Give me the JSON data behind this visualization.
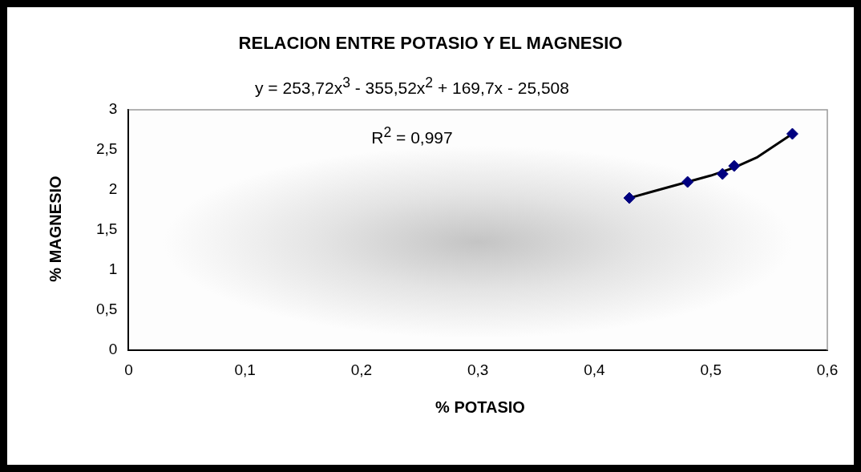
{
  "chart_data": {
    "type": "scatter",
    "title": "RELACION ENTRE POTASIO Y EL MAGNESIO",
    "xlabel": "% POTASIO",
    "ylabel": "% MAGNESIO",
    "annotations": [
      "y = 253,72x$^{3}$ - 355,52x$^{2}$ + 169,7x - 25,508",
      "R$^{2}$ = 0,997"
    ],
    "series": [
      {
        "type": "line",
        "color": "#000000",
        "marker": "none",
        "x": [
          0.43,
          0.45,
          0.48,
          0.5,
          0.52,
          0.54,
          0.57
        ],
        "values": [
          1.9,
          1.98,
          2.1,
          2.18,
          2.28,
          2.41,
          2.7
        ]
      },
      {
        "type": "scatter",
        "color": "#000080",
        "marker": "diamond",
        "x": [
          0.43,
          0.48,
          0.51,
          0.52,
          0.57
        ],
        "values": [
          1.9,
          2.1,
          2.2,
          2.3,
          2.7
        ]
      }
    ],
    "xlim": [
      0,
      0.6
    ],
    "xticks": [
      0,
      {
        "value": 0.1,
        "label": "0,1"
      },
      {
        "value": 0.2,
        "label": "0,2"
      },
      {
        "value": 0.3,
        "label": "0,3"
      },
      {
        "value": 0.4,
        "label": "0,4"
      },
      {
        "value": 0.5,
        "label": "0,5"
      },
      {
        "value": 0.6,
        "label": "0,6"
      }
    ],
    "ylim": [
      0,
      3
    ],
    "yticks": [
      0,
      {
        "value": 0.5,
        "label": "0,5"
      },
      1,
      {
        "value": 1.5,
        "label": "1,5"
      },
      2,
      {
        "value": 2.5,
        "label": "2,5"
      },
      3
    ],
    "grid": false,
    "legend": false
  }
}
